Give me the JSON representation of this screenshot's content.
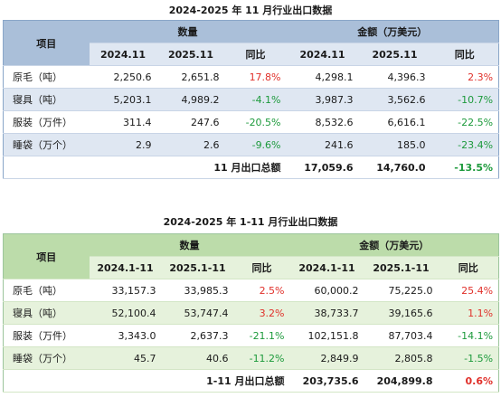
{
  "t1": {
    "title": "2024-2025 年 11 月行业出口数据",
    "item_header": "项目",
    "qty_header": "数量",
    "amt_header": "金额（万美元）",
    "sub": [
      "2024.11",
      "2025.11",
      "同比",
      "2024.11",
      "2025.11",
      "同比"
    ],
    "rows": [
      {
        "name": "原毛（吨）",
        "q1": "2,250.6",
        "q2": "2,651.8",
        "qy": "17.8%",
        "a1": "4,298.1",
        "a2": "4,396.3",
        "ay": "2.3%"
      },
      {
        "name": "寝具（吨）",
        "q1": "5,203.1",
        "q2": "4,989.2",
        "qy": "-4.1%",
        "a1": "3,987.3",
        "a2": "3,562.6",
        "ay": "-10.7%"
      },
      {
        "name": "服装（万件）",
        "q1": "311.4",
        "q2": "247.6",
        "qy": "-20.5%",
        "a1": "8,532.6",
        "a2": "6,616.1",
        "ay": "-22.5%"
      },
      {
        "name": "睡袋（万个）",
        "q1": "2.9",
        "q2": "2.6",
        "qy": "-9.6%",
        "a1": "241.6",
        "a2": "185.0",
        "ay": "-23.4%"
      }
    ],
    "total": {
      "label": "11 月出口总额",
      "a1": "17,059.6",
      "a2": "14,760.0",
      "ay": "-13.5%"
    }
  },
  "t2": {
    "title": "2024-2025 年 1-11 月行业出口数据",
    "item_header": "项目",
    "qty_header": "数量",
    "amt_header": "金额（万美元）",
    "sub": [
      "2024.1-11",
      "2025.1-11",
      "同比",
      "2024.1-11",
      "2025.1-11",
      "同比"
    ],
    "rows": [
      {
        "name": "原毛（吨）",
        "q1": "33,157.3",
        "q2": "33,985.3",
        "qy": "2.5%",
        "a1": "60,000.2",
        "a2": "75,225.0",
        "ay": "25.4%"
      },
      {
        "name": "寝具（吨）",
        "q1": "52,100.4",
        "q2": "53,747.4",
        "qy": "3.2%",
        "a1": "38,733.7",
        "a2": "39,165.6",
        "ay": "1.1%"
      },
      {
        "name": "服装（万件）",
        "q1": "3,343.0",
        "q2": "2,637.3",
        "qy": "-21.1%",
        "a1": "102,151.8",
        "a2": "87,703.4",
        "ay": "-14.1%"
      },
      {
        "name": "睡袋（万个）",
        "q1": "45.7",
        "q2": "40.6",
        "qy": "-11.2%",
        "a1": "2,849.9",
        "a2": "2,805.8",
        "ay": "-1.5%"
      }
    ],
    "total": {
      "label": "1-11 月出口总额",
      "a1": "203,735.6",
      "a2": "204,899.8",
      "ay": "0.6%"
    }
  },
  "colors": {
    "increase": "#e0302a",
    "decrease": "#1d9a3c",
    "blue_header": "#aabfd9",
    "green_header": "#bcdcaa"
  }
}
